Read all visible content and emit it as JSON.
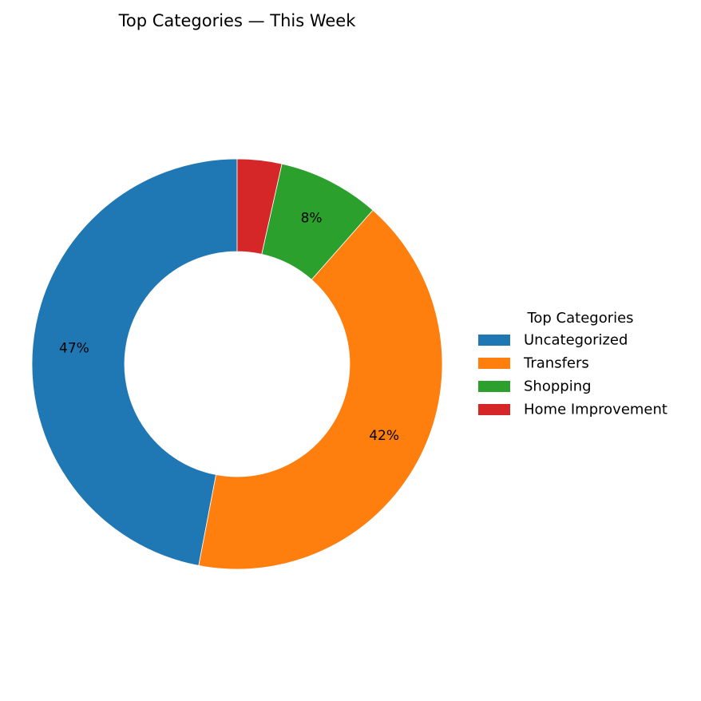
{
  "chart_data": {
    "type": "pie",
    "variant": "donut",
    "title": "Top Categories — This Week",
    "legend_title": "Top Categories",
    "legend_position": "right",
    "start_angle": "top",
    "direction": "counterclockwise",
    "categories": [
      "Uncategorized",
      "Transfers",
      "Shopping",
      "Home Improvement"
    ],
    "values": [
      47.0,
      41.5,
      8.0,
      3.5
    ],
    "labels": [
      "47%",
      "42%",
      "8%",
      ""
    ],
    "colors": [
      "#1f77b4",
      "#ff7f0e",
      "#2ca02c",
      "#d62728"
    ]
  }
}
